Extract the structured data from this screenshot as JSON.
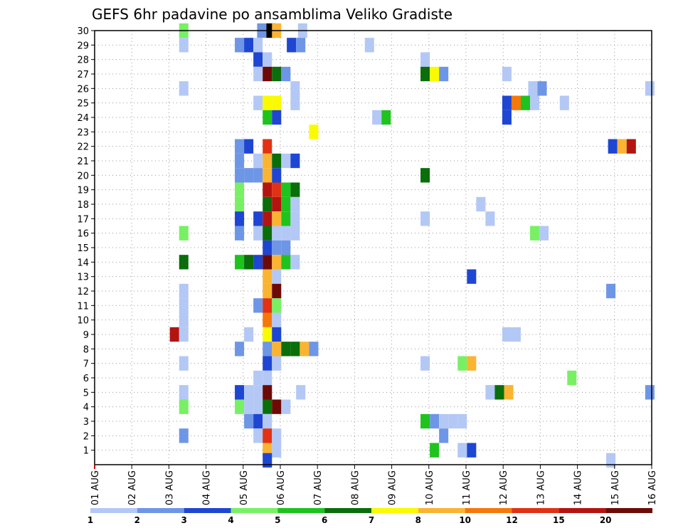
{
  "chart_data": {
    "type": "heatmap",
    "title": "GEFS 6hr padavine po ansamblima Veliko Gradiste",
    "y_ticks": [
      "1",
      "2",
      "3",
      "4",
      "5",
      "6",
      "7",
      "8",
      "9",
      "10",
      "11",
      "12",
      "13",
      "14",
      "15",
      "16",
      "17",
      "18",
      "19",
      "20",
      "21",
      "22",
      "23",
      "24",
      "25",
      "26",
      "27",
      "28",
      "29",
      "30"
    ],
    "x_ticks": [
      "01 AUG",
      "02 AUG",
      "03 AUG",
      "04 AUG",
      "05 AUG",
      "06 AUG",
      "07 AUG",
      "08 AUG",
      "09 AUG",
      "10 AUG",
      "11 AUG",
      "12 AUG",
      "13 AUG",
      "14 AUG",
      "15 AUG",
      "16 AUG"
    ],
    "time_range_days": [
      1,
      16
    ],
    "member_range": [
      0,
      30
    ],
    "grid": "dotted",
    "colorbar": {
      "levels": [
        "1",
        "2",
        "3",
        "4",
        "5",
        "6",
        "7",
        "8",
        "10",
        "12",
        "15",
        "20"
      ],
      "colors": [
        "#b4c8f5",
        "#6e96e6",
        "#1e46d2",
        "#78f064",
        "#1ec31e",
        "#0a6e0a",
        "#fafa00",
        "#fab432",
        "#f5780a",
        "#e13214",
        "#b4140f",
        "#6e0a05"
      ]
    },
    "cells": [
      [
        30,
        3.4,
        3
      ],
      [
        30,
        5.5,
        1
      ],
      [
        30,
        5.75,
        12
      ],
      [
        30,
        5.9,
        7
      ],
      [
        30,
        6.6,
        0
      ],
      [
        29,
        3.4,
        0
      ],
      [
        29,
        4.9,
        1
      ],
      [
        29,
        5.15,
        2
      ],
      [
        29,
        5.4,
        0
      ],
      [
        29,
        6.3,
        2
      ],
      [
        29,
        6.55,
        1
      ],
      [
        29,
        8.4,
        0
      ],
      [
        28,
        5.4,
        2
      ],
      [
        28,
        5.65,
        0
      ],
      [
        28,
        9.9,
        0
      ],
      [
        27,
        5.4,
        0
      ],
      [
        27,
        5.65,
        11
      ],
      [
        27,
        5.9,
        5
      ],
      [
        27,
        6.15,
        1
      ],
      [
        27,
        9.9,
        5
      ],
      [
        27,
        10.15,
        6
      ],
      [
        27,
        10.4,
        1
      ],
      [
        27,
        12.1,
        0
      ],
      [
        26,
        3.4,
        0
      ],
      [
        26,
        6.4,
        0
      ],
      [
        26,
        12.8,
        0
      ],
      [
        26,
        13.05,
        1
      ],
      [
        26,
        15.95,
        0
      ],
      [
        25,
        5.4,
        0
      ],
      [
        25,
        5.65,
        6
      ],
      [
        25,
        5.9,
        6
      ],
      [
        25,
        6.4,
        0
      ],
      [
        25,
        12.1,
        2
      ],
      [
        25,
        12.35,
        8
      ],
      [
        25,
        12.6,
        4
      ],
      [
        25,
        12.85,
        0
      ],
      [
        25,
        13.65,
        0
      ],
      [
        24,
        5.65,
        4
      ],
      [
        24,
        5.9,
        2
      ],
      [
        24,
        8.6,
        0
      ],
      [
        24,
        8.85,
        4
      ],
      [
        24,
        12.1,
        2
      ],
      [
        23,
        6.9,
        6
      ],
      [
        22,
        4.9,
        1
      ],
      [
        22,
        5.15,
        2
      ],
      [
        22,
        5.65,
        9
      ],
      [
        22,
        14.95,
        2
      ],
      [
        22,
        15.2,
        7
      ],
      [
        22,
        15.45,
        10
      ],
      [
        21,
        4.9,
        1
      ],
      [
        21,
        5.4,
        0
      ],
      [
        21,
        5.65,
        7
      ],
      [
        21,
        5.9,
        5
      ],
      [
        21,
        6.15,
        0
      ],
      [
        21,
        6.4,
        2
      ],
      [
        20,
        4.9,
        1
      ],
      [
        20,
        5.15,
        1
      ],
      [
        20,
        5.4,
        1
      ],
      [
        20,
        5.65,
        7
      ],
      [
        20,
        5.9,
        2
      ],
      [
        20,
        9.9,
        5
      ],
      [
        19,
        4.9,
        3
      ],
      [
        19,
        5.65,
        10
      ],
      [
        19,
        5.9,
        9
      ],
      [
        19,
        6.15,
        4
      ],
      [
        19,
        6.4,
        5
      ],
      [
        18,
        4.9,
        3
      ],
      [
        18,
        5.65,
        5
      ],
      [
        18,
        5.9,
        10
      ],
      [
        18,
        6.15,
        4
      ],
      [
        18,
        6.4,
        0
      ],
      [
        18,
        11.4,
        0
      ],
      [
        17,
        4.9,
        2
      ],
      [
        17,
        5.4,
        2
      ],
      [
        17,
        5.65,
        10
      ],
      [
        17,
        5.9,
        7
      ],
      [
        17,
        6.15,
        4
      ],
      [
        17,
        6.4,
        0
      ],
      [
        17,
        9.9,
        0
      ],
      [
        17,
        11.65,
        0
      ],
      [
        16,
        3.4,
        3
      ],
      [
        16,
        4.9,
        1
      ],
      [
        16,
        5.4,
        0
      ],
      [
        16,
        5.65,
        5
      ],
      [
        16,
        5.9,
        0
      ],
      [
        16,
        6.15,
        0
      ],
      [
        16,
        6.4,
        0
      ],
      [
        16,
        12.85,
        3
      ],
      [
        16,
        13.1,
        0
      ],
      [
        15,
        5.65,
        2
      ],
      [
        15,
        5.9,
        1
      ],
      [
        15,
        6.15,
        1
      ],
      [
        14,
        3.4,
        5
      ],
      [
        14,
        4.9,
        4
      ],
      [
        14,
        5.15,
        5
      ],
      [
        14,
        5.4,
        2
      ],
      [
        14,
        5.65,
        11
      ],
      [
        14,
        5.9,
        7
      ],
      [
        14,
        6.15,
        4
      ],
      [
        14,
        6.4,
        0
      ],
      [
        13,
        5.65,
        7
      ],
      [
        13,
        5.9,
        0
      ],
      [
        13,
        11.15,
        2
      ],
      [
        12,
        3.4,
        0
      ],
      [
        12,
        5.65,
        7
      ],
      [
        12,
        5.9,
        11
      ],
      [
        12,
        14.9,
        1
      ],
      [
        11,
        3.4,
        0
      ],
      [
        11,
        5.4,
        1
      ],
      [
        11,
        5.65,
        9
      ],
      [
        11,
        5.9,
        3
      ],
      [
        10,
        3.4,
        0
      ],
      [
        10,
        5.65,
        8
      ],
      [
        10,
        5.9,
        0
      ],
      [
        9,
        3.15,
        10
      ],
      [
        9,
        3.4,
        0
      ],
      [
        9,
        5.15,
        0
      ],
      [
        9,
        5.65,
        6
      ],
      [
        9,
        5.9,
        2
      ],
      [
        9,
        12.1,
        0
      ],
      [
        9,
        12.35,
        0
      ],
      [
        8,
        4.9,
        1
      ],
      [
        8,
        5.65,
        1
      ],
      [
        8,
        5.9,
        7
      ],
      [
        8,
        6.15,
        5
      ],
      [
        8,
        6.4,
        5
      ],
      [
        8,
        6.65,
        7
      ],
      [
        8,
        6.9,
        1
      ],
      [
        7,
        3.4,
        0
      ],
      [
        7,
        5.65,
        2
      ],
      [
        7,
        5.9,
        0
      ],
      [
        7,
        9.9,
        0
      ],
      [
        7,
        10.9,
        3
      ],
      [
        7,
        11.15,
        7
      ],
      [
        6,
        5.4,
        0
      ],
      [
        6,
        5.65,
        0
      ],
      [
        6,
        13.85,
        3
      ],
      [
        5,
        3.4,
        0
      ],
      [
        5,
        4.9,
        2
      ],
      [
        5,
        5.15,
        0
      ],
      [
        5,
        5.4,
        0
      ],
      [
        5,
        5.65,
        11
      ],
      [
        5,
        6.55,
        0
      ],
      [
        5,
        11.65,
        0
      ],
      [
        5,
        11.9,
        5
      ],
      [
        5,
        12.15,
        7
      ],
      [
        5,
        15.95,
        1
      ],
      [
        4,
        3.4,
        3
      ],
      [
        4,
        4.9,
        3
      ],
      [
        4,
        5.15,
        0
      ],
      [
        4,
        5.4,
        0
      ],
      [
        4,
        5.65,
        5
      ],
      [
        4,
        5.9,
        11
      ],
      [
        4,
        6.15,
        0
      ],
      [
        3,
        5.15,
        1
      ],
      [
        3,
        5.4,
        2
      ],
      [
        3,
        5.65,
        0
      ],
      [
        3,
        9.9,
        4
      ],
      [
        3,
        10.15,
        1
      ],
      [
        3,
        10.4,
        0
      ],
      [
        3,
        10.65,
        0
      ],
      [
        3,
        10.9,
        0
      ],
      [
        2,
        3.4,
        1
      ],
      [
        2,
        5.4,
        0
      ],
      [
        2,
        5.65,
        9
      ],
      [
        2,
        5.9,
        0
      ],
      [
        2,
        10.4,
        1
      ],
      [
        1,
        5.65,
        7
      ],
      [
        1,
        5.9,
        0
      ],
      [
        1,
        10.15,
        4
      ],
      [
        1,
        10.9,
        0
      ],
      [
        1,
        11.15,
        2
      ],
      [
        0.3,
        5.65,
        2
      ],
      [
        0.3,
        14.9,
        0
      ]
    ]
  }
}
